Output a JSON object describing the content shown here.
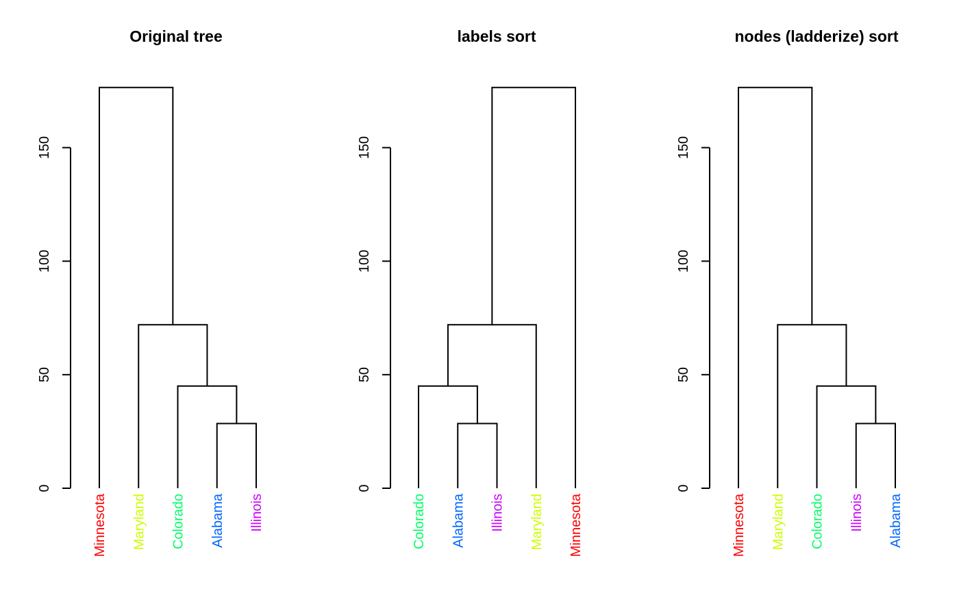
{
  "chart_data": [
    {
      "type": "dendrogram",
      "title": "Original tree",
      "leaves": [
        "Minnesota",
        "Maryland",
        "Colorado",
        "Alabama",
        "Illinois"
      ],
      "merges": [
        {
          "left": "Alabama",
          "right": "Illinois",
          "height": 28.5
        },
        {
          "left": "Colorado",
          "right": [
            "Alabama",
            "Illinois"
          ],
          "height": 45
        },
        {
          "left": "Maryland",
          "right": [
            "Colorado",
            "Alabama",
            "Illinois"
          ],
          "height": 72
        },
        {
          "left": "Minnesota",
          "right": [
            "Maryland",
            "Colorado",
            "Alabama",
            "Illinois"
          ],
          "height": 176.5
        }
      ],
      "yticks": [
        0,
        50,
        100,
        150
      ],
      "ylim": [
        0,
        176.5
      ]
    },
    {
      "type": "dendrogram",
      "title": "labels sort",
      "leaves": [
        "Colorado",
        "Alabama",
        "Illinois",
        "Maryland",
        "Minnesota"
      ],
      "merges": [
        {
          "left": "Alabama",
          "right": "Illinois",
          "height": 28.5
        },
        {
          "left": "Colorado",
          "right": [
            "Alabama",
            "Illinois"
          ],
          "height": 45
        },
        {
          "left": [
            "Colorado",
            "Alabama",
            "Illinois"
          ],
          "right": "Maryland",
          "height": 72
        },
        {
          "left": [
            "Colorado",
            "Alabama",
            "Illinois",
            "Maryland"
          ],
          "right": "Minnesota",
          "height": 176.5
        }
      ],
      "yticks": [
        0,
        50,
        100,
        150
      ],
      "ylim": [
        0,
        176.5
      ]
    },
    {
      "type": "dendrogram",
      "title": "nodes (ladderize) sort",
      "leaves": [
        "Minnesota",
        "Maryland",
        "Colorado",
        "Illinois",
        "Alabama"
      ],
      "merges": [
        {
          "left": "Illinois",
          "right": "Alabama",
          "height": 28.5
        },
        {
          "left": "Colorado",
          "right": [
            "Illinois",
            "Alabama"
          ],
          "height": 45
        },
        {
          "left": "Maryland",
          "right": [
            "Colorado",
            "Illinois",
            "Alabama"
          ],
          "height": 72
        },
        {
          "left": "Minnesota",
          "right": [
            "Maryland",
            "Colorado",
            "Illinois",
            "Alabama"
          ],
          "height": 176.5
        }
      ],
      "yticks": [
        0,
        50,
        100,
        150
      ],
      "ylim": [
        0,
        176.5
      ]
    }
  ],
  "leaf_colors": {
    "Minnesota": "#FF0000",
    "Maryland": "#CCFF00",
    "Colorado": "#00FF66",
    "Alabama": "#0066FF",
    "Illinois": "#CC00FF"
  }
}
